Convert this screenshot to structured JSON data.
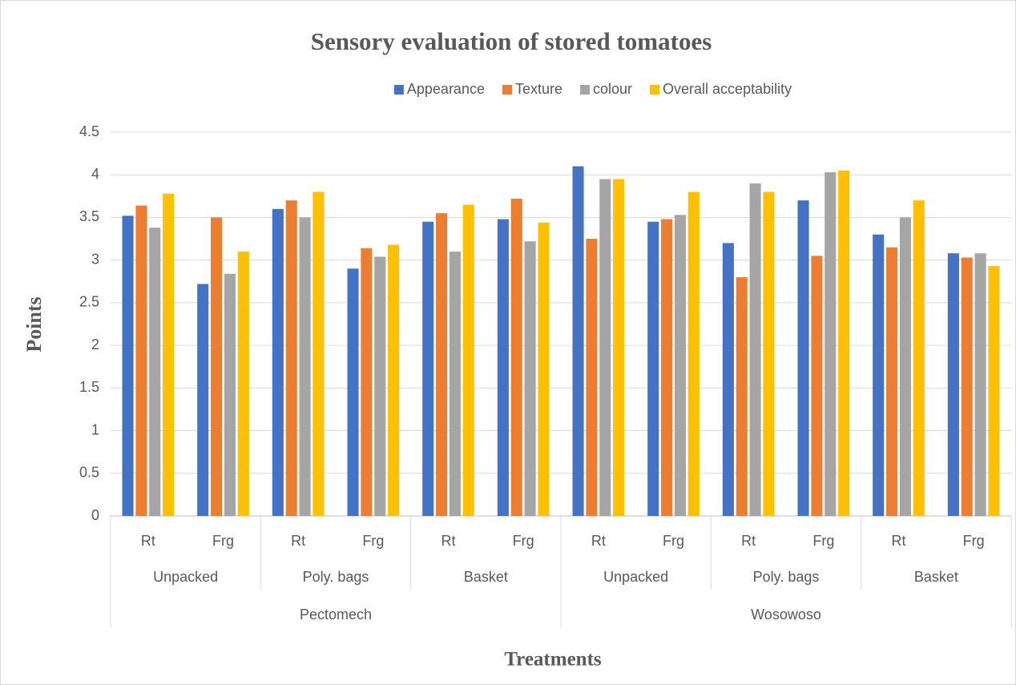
{
  "chart_data": {
    "type": "bar",
    "title": "Sensory evaluation of stored tomatoes",
    "x_label": "Treatments",
    "y_label": "Points",
    "categories": [
      "Rt",
      "Frg",
      "Rt",
      "Frg",
      "Rt",
      "Frg",
      "Rt",
      "Frg",
      "Rt",
      "Frg",
      "Rt",
      "Frg"
    ],
    "category_groups": [
      "Unpacked",
      "Poly. bags",
      "Basket",
      "Unpacked",
      "Poly. bags",
      "Basket"
    ],
    "category_supergroups": [
      "Pectomech",
      "Wosowoso"
    ],
    "series": [
      {
        "name": "Appearance",
        "color": "#4472c4",
        "values": [
          3.52,
          2.72,
          3.6,
          2.9,
          3.45,
          3.48,
          4.1,
          3.45,
          3.2,
          3.7,
          3.3,
          3.08
        ]
      },
      {
        "name": "Texture",
        "color": "#ed7d31",
        "values": [
          3.64,
          3.5,
          3.7,
          3.14,
          3.55,
          3.72,
          3.25,
          3.48,
          2.8,
          3.05,
          3.15,
          3.03
        ]
      },
      {
        "name": "colour",
        "color": "#a5a5a5",
        "values": [
          3.38,
          2.84,
          3.5,
          3.04,
          3.1,
          3.22,
          3.95,
          3.53,
          3.9,
          4.03,
          3.5,
          3.08
        ]
      },
      {
        "name": "Overall acceptability",
        "color": "#ffc000",
        "values": [
          3.78,
          3.1,
          3.8,
          3.18,
          3.65,
          3.44,
          3.95,
          3.8,
          3.8,
          4.05,
          3.7,
          2.93
        ]
      }
    ],
    "ylim": [
      0,
      4.5
    ],
    "yticks": [
      0,
      0.5,
      1,
      1.5,
      2,
      2.5,
      3,
      3.5,
      4,
      4.5
    ],
    "grid": true,
    "legend": "top"
  }
}
